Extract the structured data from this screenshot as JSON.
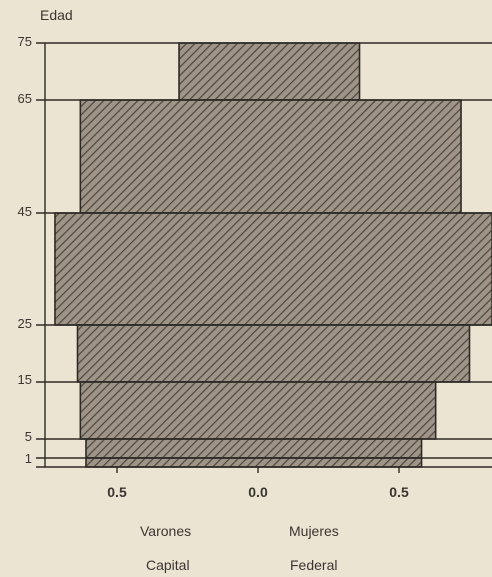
{
  "chart_data": {
    "type": "bar",
    "orientation": "population-pyramid",
    "y_title": "Edad",
    "y_ticks": [
      "75",
      "65",
      "45",
      "25",
      "15",
      "5",
      "1"
    ],
    "x_ticks": [
      "0.5",
      "0.0",
      "0.5"
    ],
    "x_left_label": "Varones",
    "x_right_label": "Mujeres",
    "footer_left": "Capital",
    "footer_right": "Federal",
    "hatch_color": "#5a5248",
    "bars": [
      {
        "age_from": 65,
        "age_to": 75,
        "male": 0.28,
        "female": 0.36
      },
      {
        "age_from": 45,
        "age_to": 65,
        "male": 0.63,
        "female": 0.72
      },
      {
        "age_from": 25,
        "age_to": 45,
        "male": 0.72,
        "female": 0.83
      },
      {
        "age_from": 15,
        "age_to": 25,
        "male": 0.64,
        "female": 0.75
      },
      {
        "age_from": 5,
        "age_to": 15,
        "male": 0.63,
        "female": 0.63
      },
      {
        "age_from": 1,
        "age_to": 5,
        "male": 0.61,
        "female": 0.58
      },
      {
        "age_from": 0,
        "age_to": 1,
        "male": 0.61,
        "female": 0.58
      }
    ]
  }
}
